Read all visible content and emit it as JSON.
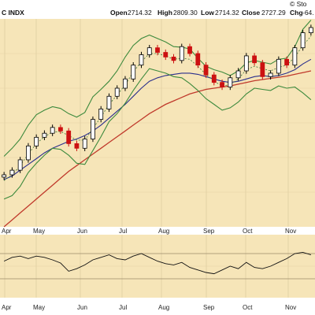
{
  "header": {
    "symbol": "C INDX",
    "open_label": "Open",
    "open_value": "2714.32",
    "high_label": "High",
    "high_value": "2809.30",
    "low_label": "Low",
    "low_value": "2714.32",
    "close_label": "Close",
    "close_value": "2727.29",
    "chg_label": "Chg",
    "chg_value": "-64.",
    "watermark": "© Sto"
  },
  "colors": {
    "background": "#f6e5b8",
    "up_candle": "#000000",
    "down_candle": "#cc1111",
    "bollinger": "#3d8a3d",
    "ma_short": "#3a7a3a",
    "ma_mid": "#2b2f8c",
    "ma_long": "#c0392b",
    "rsi": "#111111"
  },
  "chart_data": [
    {
      "type": "candlestick",
      "title": "",
      "x_tick_labels": [
        "Apr",
        "May",
        "Jun",
        "Jul",
        "Aug",
        "Sep",
        "Oct",
        "Nov"
      ],
      "ylim": [
        2060,
        2420
      ],
      "grid": true,
      "close": [
        2150,
        2158,
        2176,
        2200,
        2215,
        2222,
        2232,
        2226,
        2204,
        2196,
        2212,
        2246,
        2264,
        2286,
        2300,
        2316,
        2340,
        2358,
        2370,
        2362,
        2354,
        2348,
        2372,
        2360,
        2340,
        2323,
        2310,
        2302,
        2318,
        2330,
        2356,
        2344,
        2320,
        2326,
        2350,
        2340,
        2370,
        2396,
        2405
      ],
      "bollinger_upper": [
        2182,
        2196,
        2212,
        2236,
        2254,
        2262,
        2268,
        2265,
        2256,
        2250,
        2258,
        2285,
        2298,
        2312,
        2330,
        2354,
        2374,
        2386,
        2392,
        2386,
        2380,
        2372,
        2371,
        2368,
        2352,
        2338,
        2332,
        2328,
        2322,
        2330,
        2344,
        2348,
        2345,
        2342,
        2350,
        2352,
        2372,
        2402,
        2418
      ],
      "bollinger_lower": [
        2108,
        2114,
        2130,
        2154,
        2170,
        2184,
        2196,
        2194,
        2184,
        2170,
        2168,
        2192,
        2216,
        2242,
        2256,
        2274,
        2296,
        2316,
        2334,
        2330,
        2326,
        2320,
        2318,
        2308,
        2296,
        2282,
        2272,
        2262,
        2266,
        2276,
        2290,
        2300,
        2298,
        2296,
        2304,
        2300,
        2302,
        2292,
        2280
      ],
      "ma_short": [
        2140,
        2150,
        2166,
        2186,
        2204,
        2216,
        2224,
        2225,
        2218,
        2210,
        2210,
        2230,
        2250,
        2272,
        2288,
        2306,
        2328,
        2346,
        2360,
        2360,
        2356,
        2350,
        2352,
        2350,
        2338,
        2324,
        2312,
        2304,
        2306,
        2316,
        2332,
        2338,
        2334,
        2330,
        2336,
        2340,
        2354,
        2374,
        2390
      ],
      "ma_mid": [
        2142,
        2148,
        2158,
        2168,
        2178,
        2188,
        2196,
        2202,
        2208,
        2212,
        2218,
        2226,
        2236,
        2248,
        2260,
        2272,
        2286,
        2300,
        2312,
        2318,
        2322,
        2324,
        2326,
        2326,
        2324,
        2320,
        2316,
        2312,
        2310,
        2312,
        2316,
        2320,
        2322,
        2320,
        2322,
        2326,
        2332,
        2342,
        2350
      ],
      "ma_long": [
        2060,
        2072,
        2084,
        2096,
        2108,
        2120,
        2132,
        2144,
        2156,
        2166,
        2176,
        2186,
        2196,
        2206,
        2216,
        2226,
        2236,
        2246,
        2256,
        2264,
        2272,
        2278,
        2284,
        2290,
        2294,
        2298,
        2300,
        2302,
        2304,
        2307,
        2310,
        2313,
        2315,
        2317,
        2319,
        2321,
        2324,
        2327,
        2330
      ]
    },
    {
      "type": "line",
      "title": "",
      "indicator": "RSI",
      "ylim": [
        0,
        100
      ],
      "reference_levels": [
        30,
        70
      ],
      "grid": true,
      "values": [
        58,
        64,
        66,
        62,
        66,
        64,
        60,
        55,
        42,
        46,
        52,
        60,
        64,
        68,
        62,
        60,
        66,
        70,
        64,
        58,
        54,
        52,
        56,
        48,
        44,
        40,
        38,
        44,
        50,
        46,
        56,
        48,
        46,
        50,
        56,
        62,
        70,
        72,
        68
      ]
    }
  ]
}
